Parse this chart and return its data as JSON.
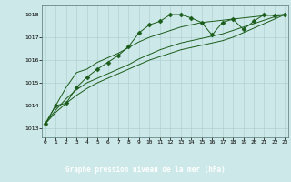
{
  "title": "Graphe pression niveau de la mer (hPa)",
  "background_color": "#cde8e8",
  "plot_bg_color": "#cde8e8",
  "bottom_bar_color": "#2d6b2d",
  "bottom_text_color": "#ffffff",
  "grid_color": "#aacccc",
  "line_color": "#1a5c1a",
  "marker_color": "#1a5c1a",
  "xlim": [
    -0.3,
    23.3
  ],
  "ylim": [
    1012.6,
    1018.4
  ],
  "yticks": [
    1013,
    1014,
    1015,
    1016,
    1017,
    1018
  ],
  "xticks": [
    0,
    1,
    2,
    3,
    4,
    5,
    6,
    7,
    8,
    9,
    10,
    11,
    12,
    13,
    14,
    15,
    16,
    17,
    18,
    19,
    20,
    21,
    22,
    23
  ],
  "series": [
    {
      "x": [
        0,
        1,
        2,
        3,
        4,
        5,
        6,
        7,
        8,
        9,
        10,
        11,
        12,
        13,
        14,
        15,
        16,
        17,
        18,
        19,
        20,
        21,
        22,
        23
      ],
      "y": [
        1013.2,
        1014.0,
        1014.1,
        1014.8,
        1015.25,
        1015.6,
        1015.9,
        1016.2,
        1016.6,
        1017.2,
        1017.55,
        1017.7,
        1018.0,
        1018.0,
        1017.85,
        1017.65,
        1017.1,
        1017.65,
        1017.8,
        1017.35,
        1017.7,
        1018.0,
        1017.95,
        1018.0
      ],
      "marker": "D",
      "markersize": 2.5
    },
    {
      "x": [
        0,
        1,
        2,
        3,
        4,
        5,
        6,
        7,
        8,
        9,
        10,
        11,
        12,
        13,
        14,
        15,
        16,
        17,
        18,
        19,
        20,
        21,
        22,
        23
      ],
      "y": [
        1013.2,
        1014.0,
        1014.8,
        1015.45,
        1015.6,
        1015.9,
        1016.1,
        1016.3,
        1016.55,
        1016.8,
        1017.0,
        1017.15,
        1017.3,
        1017.45,
        1017.55,
        1017.65,
        1017.7,
        1017.75,
        1017.8,
        1017.85,
        1017.9,
        1017.95,
        1017.98,
        1018.0
      ],
      "marker": null,
      "markersize": 0
    },
    {
      "x": [
        0,
        1,
        2,
        3,
        4,
        5,
        6,
        7,
        8,
        9,
        10,
        11,
        12,
        13,
        14,
        15,
        16,
        17,
        18,
        19,
        20,
        21,
        22,
        23
      ],
      "y": [
        1013.2,
        1013.8,
        1014.3,
        1014.7,
        1015.0,
        1015.2,
        1015.4,
        1015.6,
        1015.8,
        1016.05,
        1016.25,
        1016.45,
        1016.6,
        1016.75,
        1016.85,
        1016.95,
        1017.05,
        1017.15,
        1017.3,
        1017.45,
        1017.6,
        1017.75,
        1017.9,
        1018.0
      ],
      "marker": null,
      "markersize": 0
    },
    {
      "x": [
        0,
        1,
        2,
        3,
        4,
        5,
        6,
        7,
        8,
        9,
        10,
        11,
        12,
        13,
        14,
        15,
        16,
        17,
        18,
        19,
        20,
        21,
        22,
        23
      ],
      "y": [
        1013.2,
        1013.7,
        1014.1,
        1014.45,
        1014.75,
        1015.0,
        1015.2,
        1015.4,
        1015.6,
        1015.8,
        1016.0,
        1016.15,
        1016.3,
        1016.45,
        1016.55,
        1016.65,
        1016.75,
        1016.85,
        1017.0,
        1017.2,
        1017.4,
        1017.6,
        1017.8,
        1018.0
      ],
      "marker": null,
      "markersize": 0
    }
  ]
}
